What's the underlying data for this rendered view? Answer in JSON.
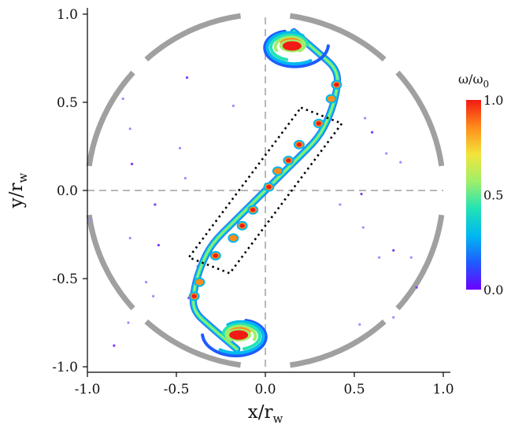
{
  "chart_data": {
    "type": "scatter",
    "title": "",
    "xlabel": "x/r",
    "xlabel_sub": "w",
    "ylabel": "y/r",
    "ylabel_sub": "w",
    "xlim": [
      -1.0,
      1.0
    ],
    "ylim": [
      -1.0,
      1.0
    ],
    "x_ticks": [
      -1.0,
      -0.5,
      0.0,
      0.5,
      1.0
    ],
    "x_tick_labels": [
      "-1.0",
      "-0.5",
      "0.0",
      "0.5",
      "1.0"
    ],
    "y_ticks": [
      1.0,
      0.5,
      0.0,
      -0.5,
      -1.0
    ],
    "y_tick_labels": [
      "1.0",
      "0.5",
      "0.0",
      "-0.5",
      "-1.0"
    ],
    "grid": false,
    "wall": {
      "radius": 1.0,
      "segments_deg": [
        [
          8,
          42
        ],
        [
          48,
          82
        ],
        [
          98,
          132
        ],
        [
          138,
          172
        ],
        [
          188,
          222
        ],
        [
          228,
          262
        ],
        [
          278,
          312
        ],
        [
          318,
          352
        ]
      ],
      "color": "#a0a0a0"
    },
    "reference_lines": [
      0.0
    ],
    "colorbar": {
      "label": "ω/ω",
      "label_sub": "0",
      "range": [
        0.0,
        1.0
      ],
      "ticks": [
        1.0,
        0.5,
        0.0
      ],
      "tick_labels": [
        "1.0",
        "0.5",
        "0.0"
      ],
      "colormap": [
        "#6a00ff",
        "#1f5cff",
        "#00b8f0",
        "#22e3b4",
        "#9fef6a",
        "#f3e43a",
        "#ff8c1a",
        "#f21a14"
      ]
    },
    "spirals": [
      {
        "center": [
          0.15,
          0.82
        ],
        "peak": 1.0
      },
      {
        "center": [
          -0.15,
          -0.82
        ],
        "peak": 1.0
      }
    ],
    "filament": {
      "points": [
        [
          0.16,
          0.9
        ],
        [
          0.3,
          0.78
        ],
        [
          0.41,
          0.68
        ],
        [
          0.4,
          0.55
        ],
        [
          0.36,
          0.42
        ],
        [
          0.3,
          0.3
        ],
        [
          0.18,
          0.18
        ],
        [
          0.05,
          0.05
        ],
        [
          -0.05,
          -0.05
        ],
        [
          -0.18,
          -0.18
        ],
        [
          -0.3,
          -0.3
        ],
        [
          -0.36,
          -0.42
        ],
        [
          -0.4,
          -0.55
        ],
        [
          -0.41,
          -0.68
        ],
        [
          -0.3,
          -0.78
        ],
        [
          -0.16,
          -0.9
        ]
      ]
    },
    "vortex_blobs": [
      {
        "x": 0.4,
        "y": 0.6,
        "w": 1.0
      },
      {
        "x": 0.37,
        "y": 0.52,
        "w": 0.9
      },
      {
        "x": 0.3,
        "y": 0.38,
        "w": 1.0
      },
      {
        "x": 0.19,
        "y": 0.26,
        "w": 1.0
      },
      {
        "x": 0.13,
        "y": 0.17,
        "w": 1.0
      },
      {
        "x": 0.07,
        "y": 0.11,
        "w": 0.9
      },
      {
        "x": 0.02,
        "y": 0.02,
        "w": 1.0
      },
      {
        "x": -0.07,
        "y": -0.11,
        "w": 1.0
      },
      {
        "x": -0.13,
        "y": -0.2,
        "w": 1.0
      },
      {
        "x": -0.18,
        "y": -0.27,
        "w": 0.9
      },
      {
        "x": -0.28,
        "y": -0.37,
        "w": 1.0
      },
      {
        "x": -0.37,
        "y": -0.52,
        "w": 0.9
      },
      {
        "x": -0.4,
        "y": -0.6,
        "w": 1.0
      }
    ],
    "annotation_box": {
      "corners": [
        [
          0.2,
          0.47
        ],
        [
          0.43,
          0.38
        ],
        [
          -0.2,
          -0.47
        ],
        [
          -0.43,
          -0.38
        ]
      ]
    },
    "specks": [
      {
        "x": -0.44,
        "y": 0.64
      },
      {
        "x": -0.8,
        "y": 0.52
      },
      {
        "x": -0.76,
        "y": 0.35
      },
      {
        "x": -0.75,
        "y": 0.15
      },
      {
        "x": -0.48,
        "y": 0.24
      },
      {
        "x": -0.45,
        "y": 0.07
      },
      {
        "x": -0.62,
        "y": -0.08
      },
      {
        "x": -0.98,
        "y": -0.17
      },
      {
        "x": -0.76,
        "y": -0.27
      },
      {
        "x": -0.6,
        "y": -0.31
      },
      {
        "x": -0.67,
        "y": -0.52
      },
      {
        "x": -0.63,
        "y": -0.6
      },
      {
        "x": -0.43,
        "y": -0.61
      },
      {
        "x": -0.77,
        "y": -0.75
      },
      {
        "x": -0.38,
        "y": -0.43
      },
      {
        "x": -0.85,
        "y": -0.88
      },
      {
        "x": -0.18,
        "y": 0.48
      },
      {
        "x": 0.56,
        "y": 0.41
      },
      {
        "x": 0.6,
        "y": 0.33
      },
      {
        "x": 0.68,
        "y": 0.21
      },
      {
        "x": 0.76,
        "y": 0.16
      },
      {
        "x": 0.54,
        "y": -0.02
      },
      {
        "x": 0.42,
        "y": -0.08
      },
      {
        "x": 0.55,
        "y": -0.21
      },
      {
        "x": 0.72,
        "y": -0.34
      },
      {
        "x": 0.64,
        "y": -0.38
      },
      {
        "x": 0.82,
        "y": -0.38
      },
      {
        "x": 0.85,
        "y": -0.55
      },
      {
        "x": 0.72,
        "y": -0.72
      },
      {
        "x": 0.53,
        "y": -0.76
      }
    ]
  }
}
